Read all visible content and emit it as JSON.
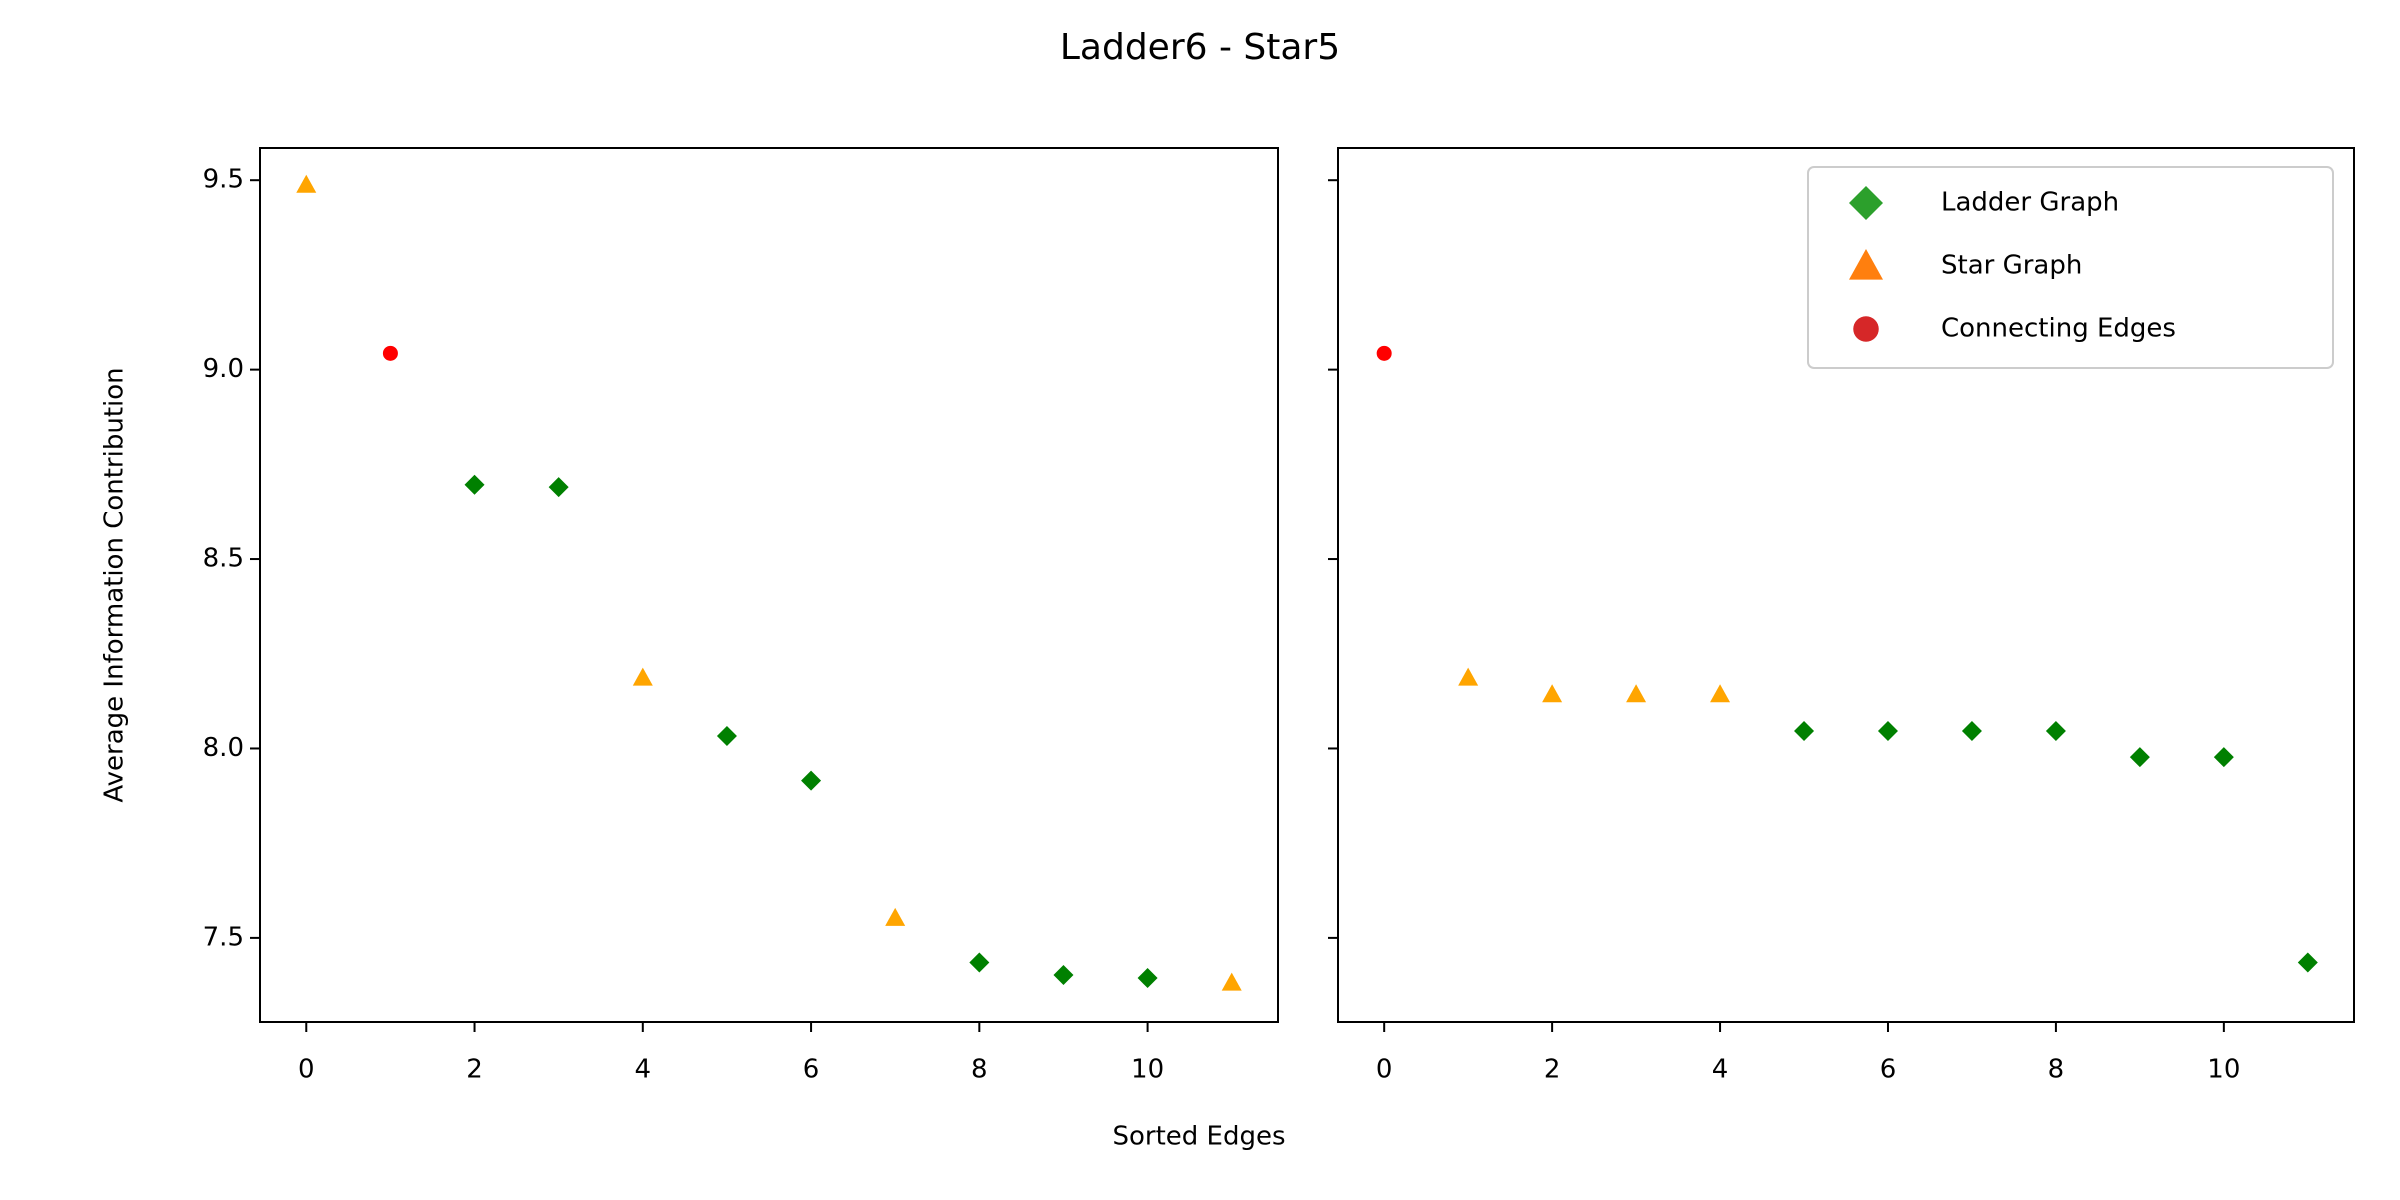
{
  "chart_data": {
    "type": "scatter",
    "title": "Ladder6 - Star5",
    "x_label": "Sorted Edges",
    "y_label": "Average Information Contribution",
    "ylim": [
      7.278,
      9.585
    ],
    "yticks": [
      7.5,
      {
        "value": 8,
        "label": "8.0"
      },
      8.5,
      {
        "value": 9,
        "label": "9.0"
      },
      9.5
    ],
    "subplots": [
      {
        "xlim": [
          -0.55,
          11.55
        ],
        "xticks": [
          0,
          2,
          4,
          6,
          8,
          10
        ],
        "series": [
          {
            "color": "#008000",
            "marker": "diamond",
            "x": [
              2,
              3,
              5,
              6,
              8,
              9,
              10
            ],
            "values": [
              8.696,
              8.69,
              8.033,
              7.915,
              7.435,
              7.402,
              7.394
            ]
          },
          {
            "color": "#ffa500",
            "marker": "triangle",
            "x": [
              0,
              4,
              7,
              11
            ],
            "values": [
              9.488,
              8.187,
              7.553,
              7.382
            ]
          },
          {
            "color": "#ff0000",
            "marker": "circle",
            "x": [
              1
            ],
            "values": [
              9.043
            ]
          }
        ]
      },
      {
        "xlim": [
          -0.55,
          11.55
        ],
        "xticks": [
          0,
          2,
          4,
          6,
          8,
          10
        ],
        "legend": "upper right",
        "series": [
          {
            "name": "Ladder Graph",
            "color": "#008000",
            "legend_color": "#2ca02c",
            "marker": "diamond",
            "x": [
              5,
              6,
              7,
              8,
              9,
              10,
              11
            ],
            "values": [
              8.046,
              8.046,
              8.046,
              8.046,
              7.977,
              7.977,
              7.435
            ]
          },
          {
            "name": "Star Graph",
            "color": "#ffa500",
            "legend_color": "#ff7f0e",
            "marker": "triangle",
            "x": [
              1,
              2,
              3,
              4
            ],
            "values": [
              8.187,
              8.143,
              8.143,
              8.143
            ]
          },
          {
            "name": "Connecting Edges",
            "color": "#ff0000",
            "legend_color": "#d62728",
            "marker": "circle",
            "x": [
              0
            ],
            "values": [
              9.043
            ]
          }
        ]
      }
    ]
  }
}
